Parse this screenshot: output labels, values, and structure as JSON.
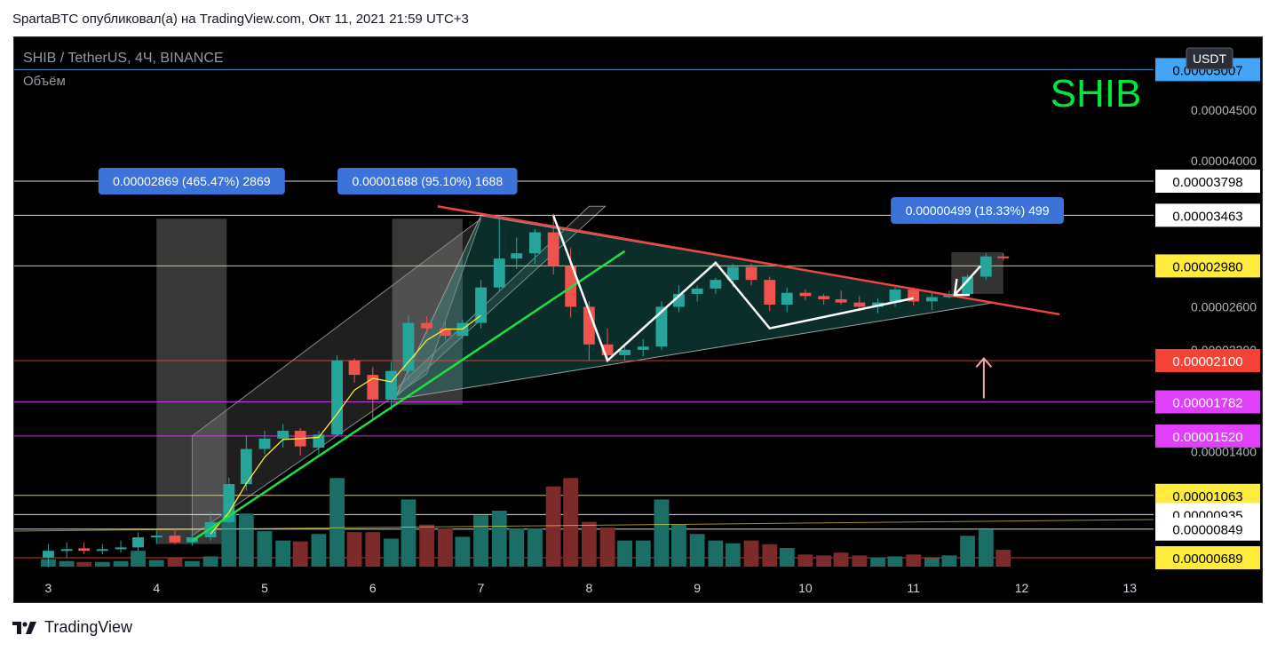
{
  "header": {
    "title": "SpartaBTC опубликовал(а) на TradingView.com, Окт 11, 2021 21:59 UTC+3"
  },
  "footer": {
    "brand": "TradingView"
  },
  "chart_data": {
    "type": "candlestick",
    "symbol_label": "SHIB / TetherUS, 4Ч, BINANCE",
    "volume_label": "Объём",
    "currency_label": "USDT",
    "watermark": "SHIB",
    "x_ticks": [
      "3",
      "4",
      "5",
      "6",
      "7",
      "8",
      "9",
      "10",
      "11",
      "12",
      "13"
    ],
    "y_ticks": [
      "0.00004500",
      "0.00004000",
      "0.00002600",
      "0.00002200",
      "0.00001400"
    ],
    "price_tags": [
      {
        "label": "0.00005007",
        "value": 5.007e-05,
        "bg": "#42a5f5",
        "fg": "#000000",
        "line": "#42a5f5"
      },
      {
        "label": "0.00003798",
        "value": 3.798e-05,
        "bg": "#ffffff",
        "fg": "#000000",
        "line": "#ffffff"
      },
      {
        "label": "0.00003463",
        "value": 3.463e-05,
        "bg": "#ffffff",
        "fg": "#000000",
        "line": "#ffffff"
      },
      {
        "label": "0.00002980",
        "value": 2.98e-05,
        "bg": "#ffeb3b",
        "fg": "#000000",
        "line": "#ffeb3b"
      },
      {
        "label": "0.00002100",
        "value": 2.1e-05,
        "bg": "#f44336",
        "fg": "#ffffff",
        "line": "#f44336"
      },
      {
        "label": "0.00001782",
        "value": 1.782e-05,
        "bg": "#e040fb",
        "fg": "#ffffff",
        "line": "#e040fb"
      },
      {
        "label": "0.00001520",
        "value": 1.52e-05,
        "bg": "#e040fb",
        "fg": "#ffffff",
        "line": "#e040fb"
      },
      {
        "label": "0.00001063",
        "value": 1.063e-05,
        "bg": "#ffeb3b",
        "fg": "#000000",
        "line": "#ffeb3b"
      },
      {
        "label": "0.00000935",
        "value": 9.35e-06,
        "bg": "#ffffff",
        "fg": "#000000",
        "line": "#ffffff"
      },
      {
        "label": "0.00000849",
        "value": 8.49e-06,
        "bg": "#ffffff",
        "fg": "#000000",
        "line": "#ffffff"
      },
      {
        "label": "0.00000689",
        "value": 6.89e-06,
        "bg": "#ffeb3b",
        "fg": "#000000",
        "line": "#f44336"
      }
    ],
    "measure_labels": [
      {
        "text": "0.00002869 (465.47%) 2869",
        "start_day": 4.0,
        "end_day": 4.65
      },
      {
        "text": "0.00001688 (95.10%) 1688",
        "start_day": 6.18,
        "end_day": 6.83
      },
      {
        "text": "0.00000499 (18.33%) 499",
        "start_day": 11.35,
        "end_day": 11.83
      }
    ],
    "colors": {
      "up": "#26a69a",
      "down": "#ef5350",
      "up_volume": "#1b6e66",
      "down_volume": "#7d2a2a",
      "watermark": "#00e83a",
      "resistance": "#ef4444",
      "support": "#22dd44",
      "ma": "#ffeb3b"
    },
    "candles": [
      {
        "t": 3.0,
        "o": 6.9e-06,
        "h": 7.6e-06,
        "l": 6.6e-06,
        "c": 7.2e-06,
        "v": 8
      },
      {
        "t": 3.17,
        "o": 7.2e-06,
        "h": 7.7e-06,
        "l": 6.9e-06,
        "c": 7.3e-06,
        "v": 6
      },
      {
        "t": 3.33,
        "o": 7.35e-06,
        "h": 7.7e-06,
        "l": 7e-06,
        "c": 7.2e-06,
        "v": 5
      },
      {
        "t": 3.5,
        "o": 7.2e-06,
        "h": 7.6e-06,
        "l": 7e-06,
        "c": 7.3e-06,
        "v": 5
      },
      {
        "t": 3.67,
        "o": 7.3e-06,
        "h": 7.8e-06,
        "l": 7.1e-06,
        "c": 7.4e-06,
        "v": 6
      },
      {
        "t": 3.83,
        "o": 7.4e-06,
        "h": 8.3e-06,
        "l": 7.2e-06,
        "c": 8e-06,
        "v": 17
      },
      {
        "t": 4.0,
        "o": 8e-06,
        "h": 8.4e-06,
        "l": 7.6e-06,
        "c": 8.1e-06,
        "v": 7
      },
      {
        "t": 4.17,
        "o": 8.1e-06,
        "h": 8.5e-06,
        "l": 7.6e-06,
        "c": 7.7e-06,
        "v": 9
      },
      {
        "t": 4.33,
        "o": 7.7e-06,
        "h": 8.2e-06,
        "l": 7.5e-06,
        "c": 8e-06,
        "v": 6
      },
      {
        "t": 4.5,
        "o": 8e-06,
        "h": 9.5e-06,
        "l": 7.8e-06,
        "c": 8.9e-06,
        "v": 11
      },
      {
        "t": 4.67,
        "o": 8.9e-06,
        "h": 1.2e-05,
        "l": 8.8e-06,
        "c": 1.15e-05,
        "v": 60
      },
      {
        "t": 4.83,
        "o": 1.15e-05,
        "h": 1.52e-05,
        "l": 1.1e-05,
        "c": 1.42e-05,
        "v": 57
      },
      {
        "t": 5.0,
        "o": 1.42e-05,
        "h": 1.56e-05,
        "l": 1.38e-05,
        "c": 1.5e-05,
        "v": 38
      },
      {
        "t": 5.17,
        "o": 1.5e-05,
        "h": 1.61e-05,
        "l": 1.43e-05,
        "c": 1.56e-05,
        "v": 28
      },
      {
        "t": 5.33,
        "o": 1.56e-05,
        "h": 1.58e-05,
        "l": 1.37e-05,
        "c": 1.44e-05,
        "v": 27
      },
      {
        "t": 5.5,
        "o": 1.43e-05,
        "h": 1.56e-05,
        "l": 1.38e-05,
        "c": 1.53e-05,
        "v": 35
      },
      {
        "t": 5.67,
        "o": 1.53e-05,
        "h": 2.15e-05,
        "l": 1.52e-05,
        "c": 2.1e-05,
        "v": 95
      },
      {
        "t": 5.83,
        "o": 2.1e-05,
        "h": 2.12e-05,
        "l": 1.93e-05,
        "c": 1.99e-05,
        "v": 37
      },
      {
        "t": 6.0,
        "o": 1.99e-05,
        "h": 2.05e-05,
        "l": 1.65e-05,
        "c": 1.8e-05,
        "v": 37
      },
      {
        "t": 6.17,
        "o": 1.8e-05,
        "h": 2.09e-05,
        "l": 1.72e-05,
        "c": 2.02e-05,
        "v": 30
      },
      {
        "t": 6.33,
        "o": 2.02e-05,
        "h": 2.52e-05,
        "l": 1.95e-05,
        "c": 2.45e-05,
        "v": 72
      },
      {
        "t": 6.5,
        "o": 2.45e-05,
        "h": 2.51e-05,
        "l": 2.35e-05,
        "c": 2.4e-05,
        "v": 45
      },
      {
        "t": 6.67,
        "o": 2.4e-05,
        "h": 2.47e-05,
        "l": 2.29e-05,
        "c": 2.33e-05,
        "v": 41
      },
      {
        "t": 6.83,
        "o": 2.33e-05,
        "h": 2.48e-05,
        "l": 2.3e-05,
        "c": 2.45e-05,
        "v": 32
      },
      {
        "t": 7.0,
        "o": 2.45e-05,
        "h": 2.85e-05,
        "l": 2.4e-05,
        "c": 2.78e-05,
        "v": 55
      },
      {
        "t": 7.17,
        "o": 2.78e-05,
        "h": 3.463e-05,
        "l": 2.75e-05,
        "c": 3.05e-05,
        "v": 60
      },
      {
        "t": 7.33,
        "o": 3.05e-05,
        "h": 3.25e-05,
        "l": 2.95e-05,
        "c": 3.1e-05,
        "v": 41
      },
      {
        "t": 7.5,
        "o": 3.1e-05,
        "h": 3.33e-05,
        "l": 3e-05,
        "c": 3.3e-05,
        "v": 41
      },
      {
        "t": 7.67,
        "o": 3.3e-05,
        "h": 3.48e-05,
        "l": 2.9e-05,
        "c": 2.98e-05,
        "v": 86
      },
      {
        "t": 7.83,
        "o": 2.98e-05,
        "h": 3.15e-05,
        "l": 2.5e-05,
        "c": 2.6e-05,
        "v": 95
      },
      {
        "t": 8.0,
        "o": 2.6e-05,
        "h": 2.65e-05,
        "l": 2.1e-05,
        "c": 2.25e-05,
        "v": 48
      },
      {
        "t": 8.17,
        "o": 2.25e-05,
        "h": 2.4e-05,
        "l": 2.1e-05,
        "c": 2.15e-05,
        "v": 42
      },
      {
        "t": 8.33,
        "o": 2.15e-05,
        "h": 2.25e-05,
        "l": 2.1e-05,
        "c": 2.2e-05,
        "v": 28
      },
      {
        "t": 8.5,
        "o": 2.2e-05,
        "h": 2.3e-05,
        "l": 2.14e-05,
        "c": 2.23e-05,
        "v": 28
      },
      {
        "t": 8.67,
        "o": 2.23e-05,
        "h": 2.65e-05,
        "l": 2.2e-05,
        "c": 2.6e-05,
        "v": 72
      },
      {
        "t": 8.83,
        "o": 2.6e-05,
        "h": 2.8e-05,
        "l": 2.55e-05,
        "c": 2.72e-05,
        "v": 45
      },
      {
        "t": 9.0,
        "o": 2.72e-05,
        "h": 2.8e-05,
        "l": 2.65e-05,
        "c": 2.77e-05,
        "v": 35
      },
      {
        "t": 9.17,
        "o": 2.77e-05,
        "h": 2.87e-05,
        "l": 2.72e-05,
        "c": 2.85e-05,
        "v": 28
      },
      {
        "t": 9.33,
        "o": 2.85e-05,
        "h": 3e-05,
        "l": 2.78e-05,
        "c": 2.97e-05,
        "v": 25
      },
      {
        "t": 9.5,
        "o": 2.97e-05,
        "h": 3e-05,
        "l": 2.8e-05,
        "c": 2.85e-05,
        "v": 28
      },
      {
        "t": 9.67,
        "o": 2.85e-05,
        "h": 2.88e-05,
        "l": 2.56e-05,
        "c": 2.62e-05,
        "v": 24
      },
      {
        "t": 9.83,
        "o": 2.62e-05,
        "h": 2.78e-05,
        "l": 2.55e-05,
        "c": 2.73e-05,
        "v": 20
      },
      {
        "t": 10.0,
        "o": 2.73e-05,
        "h": 2.76e-05,
        "l": 2.66e-05,
        "c": 2.7e-05,
        "v": 13
      },
      {
        "t": 10.17,
        "o": 2.7e-05,
        "h": 2.72e-05,
        "l": 2.62e-05,
        "c": 2.67e-05,
        "v": 12
      },
      {
        "t": 10.33,
        "o": 2.67e-05,
        "h": 2.75e-05,
        "l": 2.62e-05,
        "c": 2.64e-05,
        "v": 15
      },
      {
        "t": 10.5,
        "o": 2.64e-05,
        "h": 2.7e-05,
        "l": 2.56e-05,
        "c": 2.6e-05,
        "v": 12
      },
      {
        "t": 10.67,
        "o": 2.6e-05,
        "h": 2.68e-05,
        "l": 2.54e-05,
        "c": 2.64e-05,
        "v": 10
      },
      {
        "t": 10.83,
        "o": 2.64e-05,
        "h": 2.78e-05,
        "l": 2.6e-05,
        "c": 2.76e-05,
        "v": 11
      },
      {
        "t": 11.0,
        "o": 2.76e-05,
        "h": 2.78e-05,
        "l": 2.61e-05,
        "c": 2.65e-05,
        "v": 13
      },
      {
        "t": 11.17,
        "o": 2.65e-05,
        "h": 2.74e-05,
        "l": 2.57e-05,
        "c": 2.69e-05,
        "v": 9
      },
      {
        "t": 11.33,
        "o": 2.69e-05,
        "h": 2.75e-05,
        "l": 2.68e-05,
        "c": 2.72e-05,
        "v": 12
      },
      {
        "t": 11.5,
        "o": 2.72e-05,
        "h": 2.9e-05,
        "l": 2.7e-05,
        "c": 2.88e-05,
        "v": 33
      },
      {
        "t": 11.67,
        "o": 2.88e-05,
        "h": 3.1e-05,
        "l": 2.85e-05,
        "c": 3.07e-05,
        "v": 40
      },
      {
        "t": 11.83,
        "o": 3.07e-05,
        "h": 3.1e-05,
        "l": 3.03e-05,
        "c": 3.06e-05,
        "v": 18
      }
    ]
  }
}
